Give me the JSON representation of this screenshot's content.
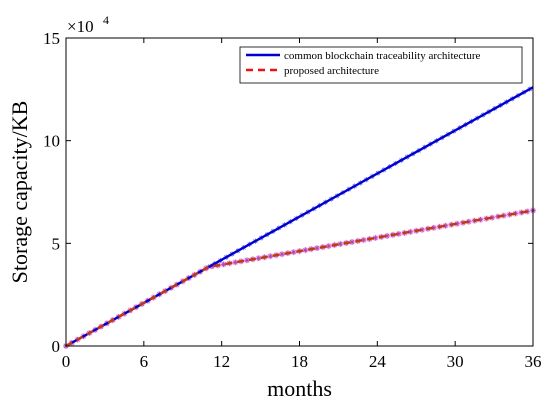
{
  "chart_data": {
    "type": "line",
    "title": "",
    "xlabel": "months",
    "ylabel": "Storage capacity/KB",
    "y_exponent_label": "×10",
    "y_exponent_power": "4",
    "xlim": [
      0,
      36
    ],
    "ylim": [
      0,
      150000
    ],
    "x_ticks": [
      0,
      6,
      12,
      18,
      24,
      30,
      36
    ],
    "y_ticks": [
      0,
      50000,
      100000,
      150000
    ],
    "y_tick_labels": [
      "0",
      "5",
      "10",
      "15"
    ],
    "grid": false,
    "legend_position": "top-right",
    "series": [
      {
        "name": "common blockchain traceability architecture",
        "color": "#0000cc",
        "style": "solid",
        "marker": "*",
        "x": [
          0,
          36
        ],
        "y": [
          0,
          126000
        ]
      },
      {
        "name": "proposed architecture",
        "color": "#ee1111",
        "style": "dashed",
        "marker": "*",
        "x": [
          0,
          11,
          36
        ],
        "y": [
          0,
          38500,
          66000
        ]
      }
    ]
  }
}
